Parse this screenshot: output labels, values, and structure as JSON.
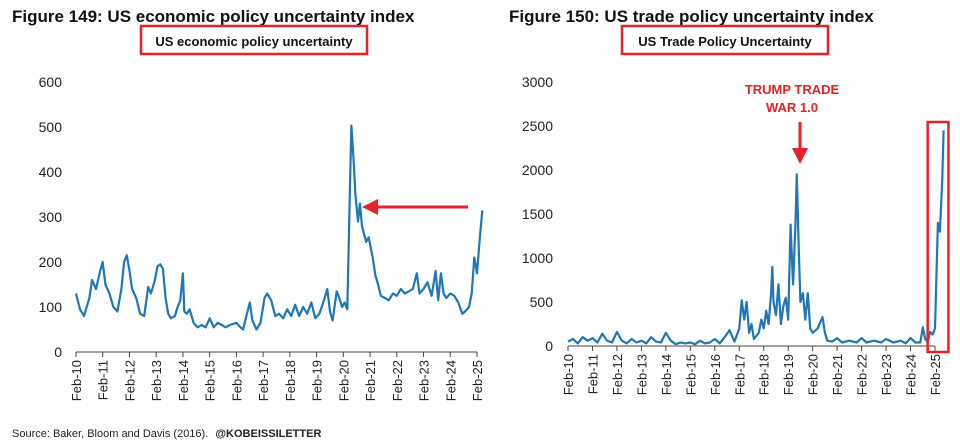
{
  "source_note": "Source: Baker, Bloom and Davis (2016).",
  "handle": "@KOBEISSILETTER",
  "colors": {
    "line": "#1f77b4",
    "annotation": "#e8202a",
    "axis": "#333333"
  },
  "chart_data": [
    {
      "type": "line",
      "figure_title": "Figure 149: US economic policy uncertainty index",
      "title": "US economic policy uncertainty",
      "xlabel": "",
      "ylabel": "",
      "ylim": [
        0,
        600
      ],
      "yticks": [
        "0",
        "100",
        "200",
        "300",
        "400",
        "500",
        "600"
      ],
      "categories": [
        "Feb-10",
        "Feb-11",
        "Feb-12",
        "Feb-13",
        "Feb-14",
        "Feb-15",
        "Feb-16",
        "Feb-17",
        "Feb-18",
        "Feb-19",
        "Feb-20",
        "Feb-21",
        "Feb-22",
        "Feb-23",
        "Feb-24",
        "Feb-25"
      ],
      "series": [
        {
          "name": "US economic policy uncertainty",
          "points": [
            [
              0,
              130
            ],
            [
              0.15,
              95
            ],
            [
              0.3,
              80
            ],
            [
              0.5,
              120
            ],
            [
              0.6,
              160
            ],
            [
              0.75,
              140
            ],
            [
              0.9,
              180
            ],
            [
              1.0,
              200
            ],
            [
              1.1,
              150
            ],
            [
              1.25,
              130
            ],
            [
              1.4,
              100
            ],
            [
              1.55,
              90
            ],
            [
              1.7,
              140
            ],
            [
              1.8,
              200
            ],
            [
              1.9,
              215
            ],
            [
              2.0,
              180
            ],
            [
              2.1,
              140
            ],
            [
              2.25,
              120
            ],
            [
              2.4,
              85
            ],
            [
              2.55,
              80
            ],
            [
              2.7,
              145
            ],
            [
              2.8,
              130
            ],
            [
              2.95,
              160
            ],
            [
              3.05,
              190
            ],
            [
              3.15,
              195
            ],
            [
              3.25,
              185
            ],
            [
              3.35,
              120
            ],
            [
              3.45,
              85
            ],
            [
              3.55,
              75
            ],
            [
              3.7,
              80
            ],
            [
              3.8,
              100
            ],
            [
              3.9,
              115
            ],
            [
              4.0,
              175
            ],
            [
              4.05,
              90
            ],
            [
              4.15,
              85
            ],
            [
              4.25,
              95
            ],
            [
              4.4,
              65
            ],
            [
              4.55,
              55
            ],
            [
              4.7,
              60
            ],
            [
              4.85,
              55
            ],
            [
              5.0,
              75
            ],
            [
              5.15,
              55
            ],
            [
              5.3,
              65
            ],
            [
              5.45,
              60
            ],
            [
              5.6,
              55
            ],
            [
              5.75,
              60
            ],
            [
              6.0,
              65
            ],
            [
              6.15,
              55
            ],
            [
              6.25,
              50
            ],
            [
              6.35,
              75
            ],
            [
              6.5,
              110
            ],
            [
              6.6,
              70
            ],
            [
              6.75,
              50
            ],
            [
              6.9,
              65
            ],
            [
              7.05,
              120
            ],
            [
              7.15,
              130
            ],
            [
              7.3,
              115
            ],
            [
              7.45,
              80
            ],
            [
              7.6,
              85
            ],
            [
              7.75,
              75
            ],
            [
              7.9,
              95
            ],
            [
              8.05,
              80
            ],
            [
              8.2,
              105
            ],
            [
              8.35,
              80
            ],
            [
              8.5,
              100
            ],
            [
              8.65,
              85
            ],
            [
              8.8,
              110
            ],
            [
              8.95,
              75
            ],
            [
              9.1,
              85
            ],
            [
              9.25,
              110
            ],
            [
              9.4,
              140
            ],
            [
              9.5,
              90
            ],
            [
              9.6,
              70
            ],
            [
              9.75,
              135
            ],
            [
              9.85,
              120
            ],
            [
              9.95,
              100
            ],
            [
              10.05,
              110
            ],
            [
              10.15,
              95
            ],
            [
              10.25,
              370
            ],
            [
              10.3,
              503
            ],
            [
              10.38,
              430
            ],
            [
              10.45,
              350
            ],
            [
              10.55,
              290
            ],
            [
              10.62,
              330
            ],
            [
              10.7,
              280
            ],
            [
              10.85,
              245
            ],
            [
              10.95,
              255
            ],
            [
              11.1,
              210
            ],
            [
              11.2,
              170
            ],
            [
              11.3,
              150
            ],
            [
              11.4,
              125
            ],
            [
              11.55,
              120
            ],
            [
              11.7,
              115
            ],
            [
              11.85,
              130
            ],
            [
              12.0,
              125
            ],
            [
              12.15,
              140
            ],
            [
              12.3,
              130
            ],
            [
              12.45,
              135
            ],
            [
              12.6,
              140
            ],
            [
              12.75,
              175
            ],
            [
              12.85,
              130
            ],
            [
              13.0,
              140
            ],
            [
              13.15,
              155
            ],
            [
              13.3,
              125
            ],
            [
              13.45,
              180
            ],
            [
              13.55,
              115
            ],
            [
              13.65,
              175
            ],
            [
              13.75,
              130
            ],
            [
              13.85,
              120
            ],
            [
              14.0,
              130
            ],
            [
              14.15,
              125
            ],
            [
              14.3,
              110
            ],
            [
              14.45,
              85
            ],
            [
              14.55,
              90
            ],
            [
              14.7,
              100
            ],
            [
              14.8,
              130
            ],
            [
              14.9,
              210
            ],
            [
              15.0,
              175
            ],
            [
              15.1,
              250
            ],
            [
              15.2,
              315
            ]
          ]
        }
      ]
    },
    {
      "type": "line",
      "figure_title": "Figure 150: US trade policy uncertainty index",
      "title": "US Trade Policy Uncertainty",
      "xlabel": "",
      "ylabel": "",
      "ylim": [
        0,
        3000
      ],
      "yticks": [
        "0",
        "500",
        "1000",
        "1500",
        "2000",
        "2500",
        "3000"
      ],
      "categories": [
        "Feb-10",
        "Feb-11",
        "Feb-12",
        "Feb-13",
        "Feb-14",
        "Feb-15",
        "Feb-16",
        "Feb-17",
        "Feb-18",
        "Feb-19",
        "Feb-20",
        "Feb-21",
        "Feb-22",
        "Feb-23",
        "Feb-24",
        "Feb-25"
      ],
      "annotation": {
        "lines": [
          "TRUMP TRADE",
          "WAR 1.0"
        ],
        "x": 9.35,
        "y": 1950
      },
      "highlight_range": {
        "x_start": 14.7,
        "x_end": 15.55
      },
      "series": [
        {
          "name": "US Trade Policy Uncertainty",
          "points": [
            [
              0,
              50
            ],
            [
              0.2,
              80
            ],
            [
              0.4,
              30
            ],
            [
              0.6,
              100
            ],
            [
              0.8,
              60
            ],
            [
              1.0,
              90
            ],
            [
              1.2,
              40
            ],
            [
              1.4,
              140
            ],
            [
              1.6,
              60
            ],
            [
              1.8,
              40
            ],
            [
              2.0,
              160
            ],
            [
              2.2,
              60
            ],
            [
              2.4,
              30
            ],
            [
              2.6,
              80
            ],
            [
              2.8,
              40
            ],
            [
              3.0,
              60
            ],
            [
              3.2,
              30
            ],
            [
              3.4,
              100
            ],
            [
              3.6,
              50
            ],
            [
              3.8,
              40
            ],
            [
              4.0,
              150
            ],
            [
              4.2,
              60
            ],
            [
              4.4,
              20
            ],
            [
              4.6,
              40
            ],
            [
              4.8,
              30
            ],
            [
              5.0,
              40
            ],
            [
              5.2,
              20
            ],
            [
              5.4,
              60
            ],
            [
              5.6,
              30
            ],
            [
              5.8,
              40
            ],
            [
              6.0,
              80
            ],
            [
              6.2,
              30
            ],
            [
              6.4,
              100
            ],
            [
              6.6,
              180
            ],
            [
              6.8,
              50
            ],
            [
              7.0,
              200
            ],
            [
              7.1,
              520
            ],
            [
              7.2,
              300
            ],
            [
              7.3,
              500
            ],
            [
              7.4,
              150
            ],
            [
              7.5,
              250
            ],
            [
              7.6,
              80
            ],
            [
              7.8,
              150
            ],
            [
              7.9,
              300
            ],
            [
              8.0,
              200
            ],
            [
              8.1,
              400
            ],
            [
              8.2,
              250
            ],
            [
              8.3,
              600
            ],
            [
              8.35,
              900
            ],
            [
              8.4,
              500
            ],
            [
              8.5,
              350
            ],
            [
              8.6,
              700
            ],
            [
              8.7,
              250
            ],
            [
              8.8,
              450
            ],
            [
              8.9,
              550
            ],
            [
              9.0,
              300
            ],
            [
              9.1,
              1380
            ],
            [
              9.15,
              1000
            ],
            [
              9.2,
              700
            ],
            [
              9.3,
              1400
            ],
            [
              9.35,
              1950
            ],
            [
              9.42,
              1200
            ],
            [
              9.5,
              500
            ],
            [
              9.6,
              600
            ],
            [
              9.7,
              300
            ],
            [
              9.8,
              600
            ],
            [
              9.9,
              200
            ],
            [
              10.0,
              150
            ],
            [
              10.2,
              200
            ],
            [
              10.4,
              330
            ],
            [
              10.5,
              150
            ],
            [
              10.6,
              60
            ],
            [
              10.8,
              50
            ],
            [
              11.0,
              90
            ],
            [
              11.2,
              40
            ],
            [
              11.5,
              60
            ],
            [
              11.8,
              40
            ],
            [
              12.0,
              90
            ],
            [
              12.2,
              40
            ],
            [
              12.5,
              60
            ],
            [
              12.8,
              40
            ],
            [
              13.0,
              80
            ],
            [
              13.3,
              40
            ],
            [
              13.6,
              60
            ],
            [
              13.8,
              30
            ],
            [
              14.0,
              90
            ],
            [
              14.2,
              40
            ],
            [
              14.4,
              40
            ],
            [
              14.5,
              210
            ],
            [
              14.6,
              80
            ],
            [
              14.7,
              50
            ],
            [
              14.8,
              160
            ],
            [
              14.9,
              130
            ],
            [
              15.0,
              200
            ],
            [
              15.05,
              700
            ],
            [
              15.12,
              1400
            ],
            [
              15.2,
              1300
            ],
            [
              15.3,
              1900
            ],
            [
              15.35,
              2450
            ]
          ]
        }
      ]
    }
  ]
}
